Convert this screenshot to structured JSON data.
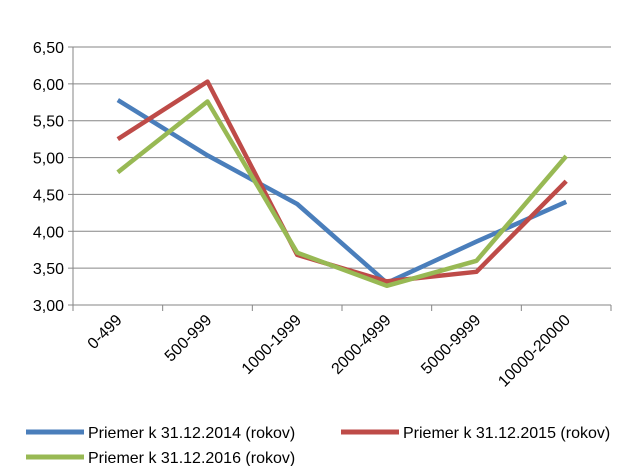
{
  "chart_data": {
    "type": "line",
    "categories": [
      "0-499",
      "500-999",
      "1000-1999",
      "2000-4999",
      "5000-9999",
      "10000-20000"
    ],
    "series": [
      {
        "name": "Priemer k 31.12.2014 (rokov)",
        "color": "#4A7EBB",
        "values": [
          5.78,
          5.03,
          4.37,
          3.3,
          3.86,
          4.4
        ]
      },
      {
        "name": "Priemer k 31.12.2015 (rokov)",
        "color": "#BE4B48",
        "values": [
          5.25,
          6.03,
          3.68,
          3.32,
          3.45,
          4.68
        ]
      },
      {
        "name": "Priemer k 31.12.2016 (rokov)",
        "color": "#98B954",
        "values": [
          4.8,
          5.76,
          3.71,
          3.26,
          3.6,
          5.02
        ]
      }
    ],
    "y_ticks": [
      "3,00",
      "3,50",
      "4,00",
      "4,50",
      "5,00",
      "5,50",
      "6,00",
      "6,50"
    ],
    "ylim": [
      3.0,
      6.5
    ],
    "grid": true,
    "legend_position": "bottom",
    "title": "",
    "xlabel": "",
    "ylabel": ""
  }
}
